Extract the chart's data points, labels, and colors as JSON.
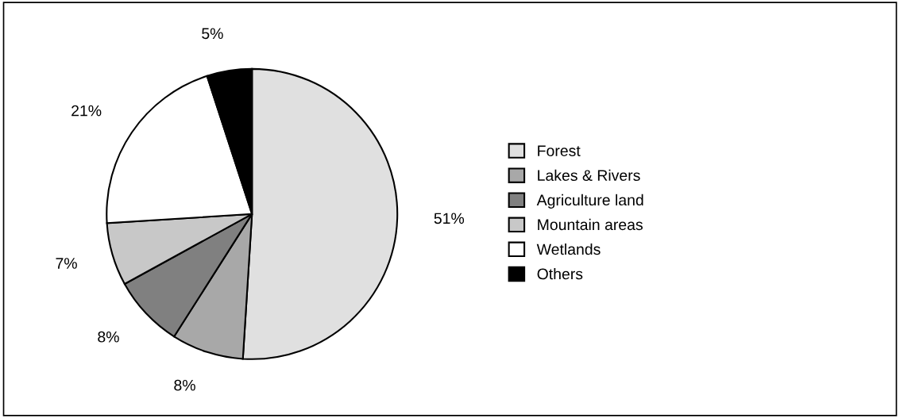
{
  "chart_data": {
    "type": "pie",
    "categories": [
      "Forest",
      "Lakes & Rivers",
      "Agriculture land",
      "Mountain areas",
      "Wetlands",
      "Others"
    ],
    "values": [
      51,
      8,
      8,
      7,
      21,
      5
    ],
    "colors": [
      "#e0e0e0",
      "#a8a8a8",
      "#808080",
      "#c8c8c8",
      "#ffffff",
      "#000000"
    ],
    "value_labels": [
      "51%",
      "8%",
      "8%",
      "7%",
      "21%",
      "5%"
    ],
    "legend": "right"
  }
}
